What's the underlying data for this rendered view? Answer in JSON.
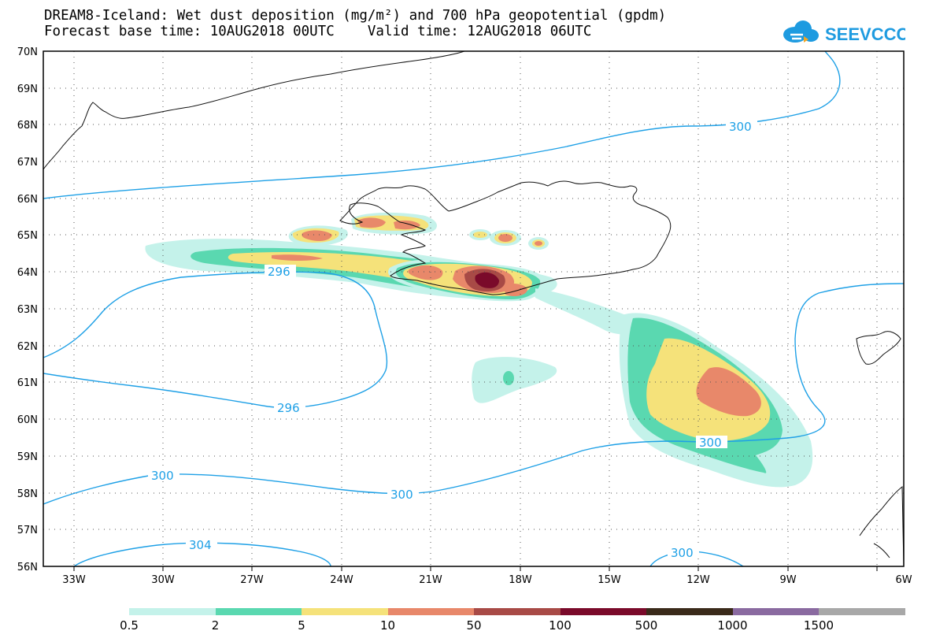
{
  "header": {
    "line1": "DREAM8-Iceland: Wet dust deposition (mg/m²) and 700 hPa geopotential (gpdm)",
    "line2": "Forecast base time: 10AUG2018 00UTC    Valid time: 12AUG2018 06UTC"
  },
  "logo": {
    "text": "SEEVCCC",
    "icon": "cloud-icon",
    "color": "#1e9be0"
  },
  "axes": {
    "lat_labels": [
      "70N",
      "69N",
      "68N",
      "67N",
      "66N",
      "65N",
      "64N",
      "63N",
      "62N",
      "61N",
      "60N",
      "59N",
      "58N",
      "57N",
      "56N"
    ],
    "lon_labels": [
      "33W",
      "30W",
      "27W",
      "24W",
      "21W",
      "18W",
      "15W",
      "12W",
      "9W",
      "6W"
    ],
    "lat_range": [
      56,
      70
    ],
    "lon_range": [
      -34.5,
      -6
    ]
  },
  "contour_labels": {
    "c300_top": "300",
    "c296_a": "296",
    "c296_b": "296",
    "c300_mid": "300",
    "c300_left": "300",
    "c300_bottom": "300",
    "c304": "304",
    "c300_right": "300"
  },
  "colors": {
    "contour": "#1ea0e6",
    "deposition": [
      "#c4f2ea",
      "#5ad8b0",
      "#f5e27a",
      "#e8886a",
      "#a84a46",
      "#7a0a2a",
      "#3a2a1a",
      "#8a6aa0",
      "#a8a8a8"
    ]
  },
  "legend": {
    "labels": [
      "0.5",
      "2",
      "5",
      "10",
      "50",
      "100",
      "500",
      "1000",
      "1500"
    ],
    "colors": [
      "#c4f2ea",
      "#5ad8b0",
      "#f5e27a",
      "#e8886a",
      "#a84a46",
      "#7a0a2a",
      "#3a2a1a",
      "#8a6aa0",
      "#a8a8a8"
    ]
  }
}
